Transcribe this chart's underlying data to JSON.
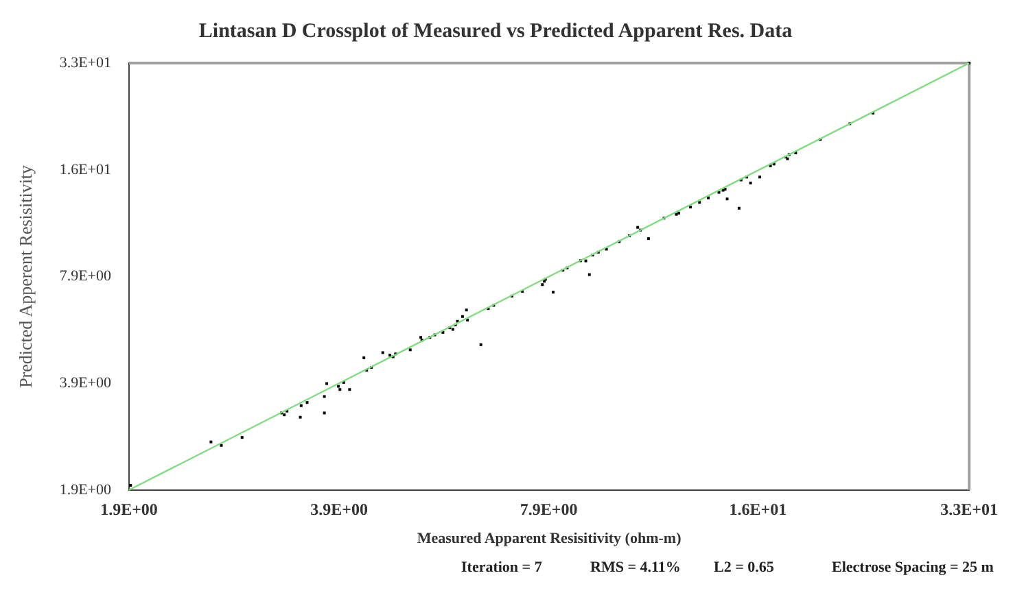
{
  "chart_data": {
    "type": "scatter",
    "title": "Lintasan D Crossplot of Measured vs Predicted Apparent Res. Data",
    "xlabel": "Measured Apparent Resisitivity (ohm-m)",
    "ylabel": "Predicted Apperent Resisitivity",
    "log": "xy",
    "grid": false,
    "legend": false,
    "xlim": [
      1.9,
      33
    ],
    "ylim": [
      1.9,
      33
    ],
    "xticks": [
      {
        "value": 1.9,
        "label": "1.9E+00"
      },
      {
        "value": 3.88,
        "label": "3.9E+00"
      },
      {
        "value": 7.91,
        "label": "7.9E+00"
      },
      {
        "value": 16.1,
        "label": "1.6E+01"
      },
      {
        "value": 33,
        "label": "3.3E+01"
      }
    ],
    "yticks": [
      {
        "value": 1.9,
        "label": "1.9E+00"
      },
      {
        "value": 3.88,
        "label": "3.9E+00"
      },
      {
        "value": 7.91,
        "label": "7.9E+00"
      },
      {
        "value": 16.1,
        "label": "1.6E+01"
      },
      {
        "value": 33,
        "label": "3.3E+01"
      }
    ],
    "series": [
      {
        "type": "line",
        "color": "#7fdc7f",
        "marker": "none",
        "line_style": "solid",
        "x": [
          1.9,
          33
        ],
        "values": [
          1.9,
          33
        ]
      },
      {
        "type": "scatter",
        "color": "#000000",
        "marker": "square",
        "x": [
          1.91,
          2.51,
          2.6,
          2.79,
          3.19,
          3.22,
          3.25,
          3.4,
          3.41,
          3.48,
          3.69,
          3.69,
          3.72,
          3.87,
          3.89,
          3.94,
          4.02,
          4.22,
          4.26,
          4.33,
          4.5,
          4.61,
          4.66,
          4.7,
          4.94,
          5.12,
          5.14,
          5.28,
          5.37,
          5.52,
          5.65,
          5.71,
          5.76,
          5.8,
          5.9,
          5.98,
          6.0,
          6.28,
          6.44,
          6.56,
          6.98,
          7.23,
          7.74,
          7.79,
          7.82,
          8.03,
          8.3,
          8.42,
          8.81,
          8.97,
          9.08,
          9.18,
          9.36,
          9.62,
          10.05,
          10.4,
          10.7,
          10.8,
          11.1,
          11.7,
          12.2,
          12.3,
          12.8,
          13.2,
          13.6,
          14.1,
          14.3,
          14.4,
          14.5,
          15.1,
          15.2,
          15.5,
          15.7,
          16.2,
          16.8,
          17.0,
          17.7,
          17.8,
          17.9,
          18.3,
          19.9,
          22.0,
          23.8,
          33
        ],
        "values": [
          1.96,
          2.62,
          2.56,
          2.7,
          3.18,
          3.14,
          3.22,
          3.09,
          3.34,
          3.41,
          3.55,
          3.18,
          3.87,
          3.8,
          3.72,
          3.9,
          3.72,
          4.6,
          4.23,
          4.31,
          4.76,
          4.68,
          4.63,
          4.72,
          4.85,
          5.27,
          5.17,
          5.27,
          5.36,
          5.45,
          5.62,
          5.56,
          5.73,
          5.87,
          6.06,
          6.33,
          5.92,
          5.02,
          6.39,
          6.53,
          6.95,
          7.17,
          7.5,
          7.67,
          7.77,
          7.13,
          8.26,
          8.39,
          8.8,
          8.79,
          8.02,
          9.14,
          9.32,
          9.51,
          10.0,
          10.4,
          11.0,
          10.8,
          10.2,
          11.7,
          12.0,
          12.1,
          12.6,
          13.0,
          13.4,
          13.9,
          14.1,
          14.2,
          13.3,
          12.5,
          15.1,
          15.4,
          14.8,
          15.4,
          16.6,
          16.8,
          17.6,
          17.4,
          17.9,
          18.1,
          19.8,
          22.0,
          23.6,
          33
        ]
      }
    ],
    "annotations": [
      "Iteration = 7",
      "RMS = 4.11%",
      "L2 = 0.65",
      "Electrose Spacing = 25 m"
    ]
  }
}
